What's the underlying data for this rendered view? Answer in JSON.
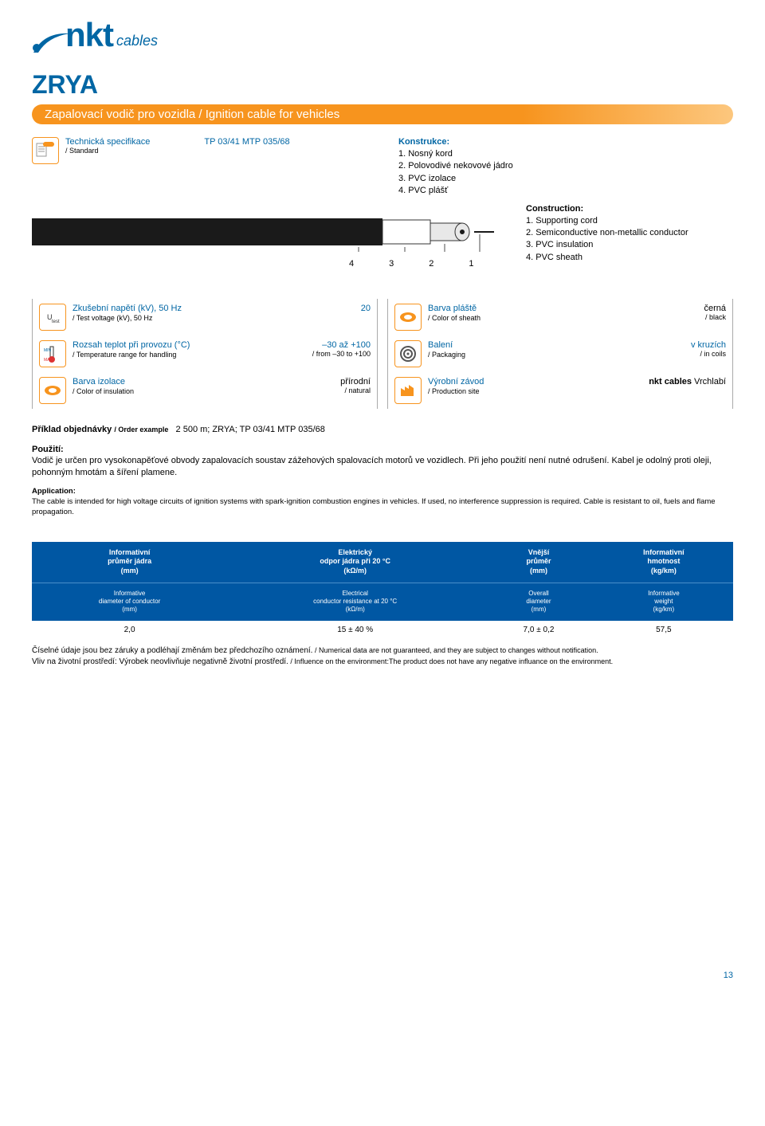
{
  "logo": {
    "brand": "nkt",
    "sub": "cables"
  },
  "title": "ZRYA",
  "subtitle": "Zapalovací vodič pro vozidla / Ignition cable for vehicles",
  "spec": {
    "label": "Technická specifikace",
    "sub": "/ Standard",
    "value": "TP 03/41 MTP 035/68"
  },
  "construction_cz": {
    "heading": "Konstrukce:",
    "items": [
      "1. Nosný kord",
      "2. Polovodivé nekovové jádro",
      "3. PVC izolace",
      "4. PVC plášť"
    ]
  },
  "construction_en": {
    "heading": "Construction:",
    "items": [
      "1. Supporting cord",
      "2. Semiconductive non-metallic conductor",
      "3. PVC insulation",
      "4. PVC sheath"
    ]
  },
  "cable_labels": [
    "4",
    "3",
    "2",
    "1"
  ],
  "params_left": [
    {
      "title": "Zkušební napětí (kV), 50 Hz",
      "sub": "/ Test voltage (kV), 50 Hz",
      "val": "20",
      "valsub": "",
      "icon": "utest"
    },
    {
      "title": "Rozsah teplot při provozu (°C)",
      "sub": "/ Temperature range for handling",
      "val": "–30 až +100",
      "valsub": "/ from –30 to +100",
      "icon": "temp"
    },
    {
      "title": "Barva izolace",
      "sub": "/ Color of insulation",
      "val": "přírodní",
      "valsub": "/ natural",
      "icon": "color",
      "black": true
    }
  ],
  "params_right": [
    {
      "title": "Barva pláště",
      "sub": "/ Color of sheath",
      "val": "černá",
      "valsub": "/ black",
      "icon": "color",
      "black": true
    },
    {
      "title": "Balení",
      "sub": "/ Packaging",
      "val": "v kruzích",
      "valsub": "/ in coils",
      "icon": "pack"
    },
    {
      "title": "Výrobní závod",
      "sub": "/ Production site",
      "val": "nkt cables Vrchlabí",
      "valsub": "",
      "icon": "factory",
      "black": true,
      "boldprefix": "nkt cables "
    }
  ],
  "example": {
    "label": "Příklad objednávky",
    "sub": "/ Order example",
    "value": "2 500 m; ZRYA; TP 03/41 MTP 035/68"
  },
  "usage_cz": {
    "title": "Použití:",
    "text": "Vodič je určen pro vysokonapěťové obvody zapalovacích soustav zážehových spalovacích motorů ve vozidlech. Při jeho použití není nutné odrušení. Kabel je odolný proti oleji, pohonným hmotám a šíření plamene."
  },
  "usage_en": {
    "title": "Application:",
    "text": "The cable is intended for high voltage circuits of ignition systems with spark-ignition combustion engines in vehicles. If used, no interference suppression is required. Cable is resistant to oil, fuels and flame propagation."
  },
  "table": {
    "headers_cz": [
      "Informativní\nprůměr jádra\n(mm)",
      "Elektrický\nodpor jádra při 20 °C\n(kΩ/m)",
      "Vnější\nprůměr\n(mm)",
      "Informativní\nhmotnost\n(kg/km)"
    ],
    "headers_en": [
      "Informative\ndiameter of conductor\n(mm)",
      "Electrical\nconductor resistance at 20 °C\n(kΩ/m)",
      "Overall\ndiameter\n(mm)",
      "Informative\nweight\n(kg/km)"
    ],
    "row": [
      "2,0",
      "15 ± 40 %",
      "7,0 ± 0,2",
      "57,5"
    ],
    "header_bg": "#0057a3"
  },
  "footnote": {
    "line1_cz": "Číselné údaje jsou bez záruky a podléhají změnám bez předchozího oznámení.",
    "line1_en": "/ Numerical data are not guaranteed, and they are subject to changes without notification.",
    "line2_cz": "Vliv na životní prostředí: Výrobek neovlivňuje negativně životní prostředí.",
    "line2_en": "/ Influence on the environment:The product does not have any negative influance on the environment."
  },
  "page_number": "13",
  "colors": {
    "blue": "#0066a4",
    "orange": "#f7941e",
    "table_bg": "#0057a3"
  }
}
